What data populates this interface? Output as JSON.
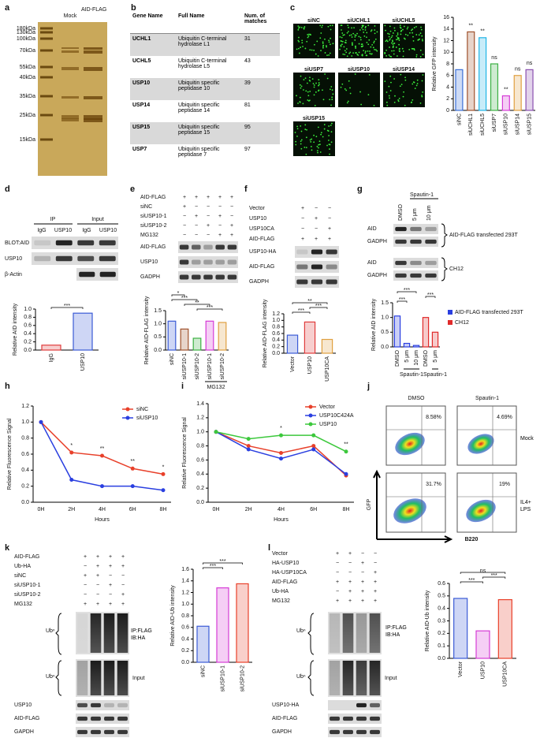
{
  "panels": {
    "a": {
      "letter": "a",
      "lanes": [
        "Mock",
        "AID-FLAG"
      ],
      "markers": [
        "180kDa",
        "130kDa",
        "100kDa",
        "70kDa",
        "55kDa",
        "40kDa",
        "35kDa",
        "25kDa",
        "15kDa"
      ]
    },
    "b": {
      "letter": "b",
      "table": {
        "header": [
          "Gene Name",
          "Full Name",
          "Num. of matches"
        ],
        "rows": [
          [
            "UCHL1",
            "Ubiquitin C-terminal hydrolase L1",
            31
          ],
          [
            "UCHL5",
            "Ubiquitin C-terminal hydrolase L5",
            43
          ],
          [
            "USP10",
            "Ubiquitin specific peptidase 10",
            39
          ],
          [
            "USP14",
            "Ubiquitin specific peptidase 14",
            81
          ],
          [
            "USP15",
            "Ubiquitin specific peptidase 15",
            95
          ],
          [
            "USP7",
            "Ubiquitin specific peptidase 7",
            97
          ]
        ]
      }
    },
    "c": {
      "letter": "c",
      "images": [
        "siNC",
        "siUCHL1",
        "siUCHL5",
        "siUSP7",
        "siUSP10",
        "siUSP14",
        "siUSP15"
      ]
    },
    "d": {
      "letter": "d",
      "groups": [
        "IP",
        "Input"
      ],
      "lanes": [
        "IgG",
        "USP10",
        "IgG",
        "USP10"
      ],
      "rows": [
        "BLOT:AID",
        "USP10",
        "β-Actin"
      ]
    },
    "e": {
      "letter": "e",
      "conditions": [
        {
          "label": "AID-FLAG",
          "signs": [
            "+",
            "+",
            "+",
            "+",
            "+"
          ]
        },
        {
          "label": "siNC",
          "signs": [
            "+",
            "−",
            "−",
            "−",
            "−"
          ]
        },
        {
          "label": "siUSP10-1",
          "signs": [
            "−",
            "+",
            "−",
            "+",
            "−"
          ]
        },
        {
          "label": "siUSP10-2",
          "signs": [
            "−",
            "−",
            "+",
            "−",
            "+"
          ]
        },
        {
          "label": "MG132",
          "signs": [
            "−",
            "−",
            "−",
            "+",
            "+"
          ]
        }
      ],
      "rows": [
        "AID-FLAG",
        "USP10",
        "GADPH"
      ]
    },
    "f": {
      "letter": "f",
      "conditions": [
        {
          "label": "Vector",
          "signs": [
            "+",
            "−",
            "−"
          ]
        },
        {
          "label": "USP10",
          "signs": [
            "−",
            "+",
            "−"
          ]
        },
        {
          "label": "USP10CA",
          "signs": [
            "−",
            "−",
            "+"
          ]
        },
        {
          "label": "AID-FLAG",
          "signs": [
            "+",
            "+",
            "+"
          ]
        }
      ],
      "rows": [
        "USP10-HA",
        "AID-FLAG",
        "GADPH"
      ]
    },
    "g": {
      "letter": "g",
      "treatment": "Spautin-1",
      "lanes": [
        "DMSO",
        "5 μm",
        "10 μm"
      ],
      "rows": [
        "AID",
        "GADPH",
        "AID",
        "GADPH"
      ],
      "cells": [
        "AID-FLAG transfected 293T",
        "CH12"
      ]
    },
    "h": {
      "letter": "h"
    },
    "i": {
      "letter": "i"
    },
    "j": {
      "letter": "j",
      "columns": [
        "DMSO",
        "Spautin-1"
      ],
      "row_labels": [
        "Mock",
        "IL4+ LPS"
      ],
      "percentages": [
        "8.58%",
        "4.69%",
        "31.7%",
        "19%"
      ],
      "y_axis": "GFP",
      "x_axis": "B220"
    },
    "k": {
      "letter": "k",
      "conditions": [
        {
          "label": "AID-FLAG",
          "signs": [
            "+",
            "+",
            "+",
            "+"
          ]
        },
        {
          "label": "Ub-HA",
          "signs": [
            "−",
            "+",
            "+",
            "+"
          ]
        },
        {
          "label": "siNC",
          "signs": [
            "+",
            "+",
            "−",
            "−"
          ]
        },
        {
          "label": "siUSP10-1",
          "signs": [
            "−",
            "−",
            "+",
            "−"
          ]
        },
        {
          "label": "siUSP10-2",
          "signs": [
            "−",
            "−",
            "−",
            "+"
          ]
        },
        {
          "label": "MG132",
          "signs": [
            "+",
            "+",
            "+",
            "+"
          ]
        }
      ],
      "ub": [
        "Ubⁿ",
        "Ubⁿ"
      ],
      "ip_label": "IP:FLAG IB:HA",
      "input_label": "Input",
      "rows": [
        "USP10",
        "AID-FLAG",
        "GAPDH"
      ]
    },
    "l": {
      "letter": "l",
      "conditions": [
        {
          "label": "Vector",
          "signs": [
            "+",
            "+",
            "−",
            "−"
          ]
        },
        {
          "label": "HA-USP10",
          "signs": [
            "−",
            "−",
            "+",
            "−"
          ]
        },
        {
          "label": "HA-USP10CA",
          "signs": [
            "−",
            "−",
            "−",
            "+"
          ]
        },
        {
          "label": "AID-FLAG",
          "signs": [
            "+",
            "+",
            "+",
            "+"
          ]
        },
        {
          "label": "Ub-HA",
          "signs": [
            "−",
            "+",
            "+",
            "+"
          ]
        },
        {
          "label": "MG132",
          "signs": [
            "+",
            "+",
            "+",
            "+"
          ]
        }
      ],
      "ub": [
        "Ubⁿ",
        "Ubⁿ"
      ],
      "ip_label": "IP:FLAG IB:HA",
      "input_label": "Input",
      "rows": [
        "USP10-HA",
        "AID-FLAG",
        "GAPDH"
      ]
    }
  },
  "chart_data": [
    {
      "type": "bar",
      "ylabel": "Relative GFP intensity",
      "categories": [
        "siNC",
        "siUCHL1",
        "siUCHL5",
        "siUSP7",
        "siUSP10",
        "siUSP14",
        "siUSP15"
      ],
      "values": [
        7,
        13.5,
        12.5,
        8,
        2.5,
        6,
        7
      ],
      "colors": [
        "#3b6fd6",
        "#a0522d",
        "#1fb5e6",
        "#3cb043",
        "#d63cd6",
        "#e0a040",
        "#8a4fb0"
      ],
      "ylim": [
        0,
        16
      ],
      "yticks": [
        0,
        2,
        4,
        6,
        8,
        10,
        12,
        14,
        16
      ],
      "annotations": [
        null,
        "**",
        "**",
        "ns",
        "**",
        "ns",
        "ns"
      ]
    },
    {
      "type": "bar",
      "ylabel": "Relative AID intensity",
      "categories": [
        "IgG",
        "USP10"
      ],
      "values": [
        0.12,
        0.9
      ],
      "colors": [
        "#e03c3c",
        "#3b5bd6"
      ],
      "ylim": [
        0,
        1
      ],
      "yticks": [
        {
          "value": 0,
          "label": "0.0"
        },
        0.2,
        0.4,
        0.6,
        0.8,
        {
          "value": 1,
          "label": "1.0"
        }
      ],
      "brackets": [
        {
          "from": 0,
          "to": 1,
          "label": "***"
        }
      ]
    },
    {
      "type": "bar",
      "ylabel": "Relative AID-FLAG intensity",
      "categories": [
        "siNC",
        "siUSP10-1",
        "siUSP10-2",
        "siUSP10-1",
        "siUSP10-2"
      ],
      "values": [
        1.1,
        0.8,
        0.45,
        1.1,
        1.05
      ],
      "colors": [
        "#3b5bd6",
        "#a0522d",
        "#3cb043",
        "#d63cd6",
        "#e0a040"
      ],
      "ylim": [
        0,
        1.5
      ],
      "yticks": [
        {
          "value": 0,
          "label": "0.0"
        },
        0.5,
        {
          "value": 1,
          "label": "1.0"
        },
        1.5
      ],
      "brackets": [
        {
          "from": 2,
          "to": 4,
          "label": "***"
        },
        {
          "from": 1,
          "to": 3,
          "label": "**"
        },
        {
          "from": 0,
          "to": 2,
          "label": "***"
        },
        {
          "from": 0,
          "to": 1,
          "label": "*"
        }
      ],
      "groups": [
        {
          "label": "MG132",
          "from": 3,
          "to": 4
        }
      ]
    },
    {
      "type": "bar",
      "ylabel": "Relative AID-FLAG intensity",
      "categories": [
        "Vector",
        "USP10",
        "USP10CA"
      ],
      "values": [
        0.55,
        0.95,
        0.42
      ],
      "colors": [
        "#3b5bd6",
        "#e03c3c",
        "#e0a040"
      ],
      "ylim": [
        0,
        1.2
      ],
      "yticks": [
        {
          "value": 0,
          "label": "0.0"
        },
        0.2,
        0.4,
        0.6,
        0.8,
        {
          "value": 1,
          "label": "1.0"
        },
        1.2
      ],
      "brackets": [
        {
          "from": 0,
          "to": 1,
          "label": "***"
        },
        {
          "from": 1,
          "to": 2,
          "label": "***"
        },
        {
          "from": 0,
          "to": 2,
          "label": "**"
        }
      ]
    },
    {
      "type": "bar",
      "ylabel": "Relative AID intensity",
      "categories": [
        "DMSO",
        "5 μm",
        "10 μm",
        "DMSO",
        "5 μm"
      ],
      "values": [
        1.05,
        0.12,
        0.05,
        1,
        0.5
      ],
      "colors": [
        "#2a3fe0",
        "#2a3fe0",
        "#2a3fe0",
        "#e02a2a",
        "#e02a2a"
      ],
      "ylim": [
        0,
        1.5
      ],
      "yticks": [
        {
          "value": 0,
          "label": "0.0"
        },
        0.5,
        {
          "value": 1,
          "label": "1.0"
        },
        1.5
      ],
      "brackets": [
        {
          "from": 0,
          "to": 1,
          "label": "***"
        },
        {
          "from": 3,
          "to": 4,
          "label": "***"
        },
        {
          "from": 0,
          "to": 2,
          "label": "***"
        }
      ],
      "groups": [
        {
          "label": "Spautin-1",
          "from": 1,
          "to": 2
        },
        {
          "label": "Spautin-1",
          "from": 4,
          "to": 4
        }
      ],
      "legend": [
        {
          "name": "AID-FLAG transfected 293T",
          "color": "#2a3fe0"
        },
        {
          "name": "CH12",
          "color": "#e02a2a"
        }
      ]
    },
    {
      "type": "line",
      "ylabel": "Relative Fluorescence Signal",
      "xlabel": "Hours",
      "categories": [
        "0H",
        "2H",
        "4H",
        "6H",
        "8H"
      ],
      "series": [
        {
          "name": "siNC",
          "color": "#e8402a",
          "values": [
            1,
            0.62,
            0.58,
            0.42,
            0.35
          ]
        },
        {
          "name": "siUSP10",
          "color": "#2a3fe0",
          "values": [
            1,
            0.28,
            0.2,
            0.2,
            0.15
          ]
        }
      ],
      "ylim": [
        0,
        1.2
      ],
      "yticks": [
        {
          "value": 0,
          "label": "0.0"
        },
        0.2,
        0.4,
        0.6,
        0.8,
        {
          "value": 1,
          "label": "1.0"
        },
        1.2
      ],
      "annotations": [
        null,
        "*",
        "**",
        "**",
        "*"
      ],
      "legend": "upper right"
    },
    {
      "type": "line",
      "ylabel": "Relative Fluorescence Signal",
      "xlabel": "Hours",
      "categories": [
        "0H",
        "2H",
        "4H",
        "6H",
        "8H"
      ],
      "series": [
        {
          "name": "Vector",
          "color": "#e8402a",
          "values": [
            1,
            0.8,
            0.7,
            0.8,
            0.38
          ]
        },
        {
          "name": "USP10C424A",
          "color": "#2a3fe0",
          "values": [
            1,
            0.75,
            0.62,
            0.75,
            0.4
          ]
        },
        {
          "name": "USP10",
          "color": "#3cc83c",
          "values": [
            1,
            0.9,
            0.95,
            0.95,
            0.72
          ]
        }
      ],
      "ylim": [
        0,
        1.4
      ],
      "yticks": [
        {
          "value": 0,
          "label": "0.0"
        },
        0.2,
        0.4,
        0.6,
        0.8,
        {
          "value": 1,
          "label": "1.0"
        },
        1.2,
        1.4
      ],
      "annotations": [
        null,
        null,
        "*",
        null,
        "**"
      ],
      "legend": "upper right"
    },
    {
      "type": "bar",
      "ylabel": "Relative AID-Ub intensity",
      "categories": [
        "siNC",
        "siUSP10-1",
        "siUSP10-2"
      ],
      "values": [
        0.62,
        1.28,
        1.35
      ],
      "colors": [
        "#3b5bd6",
        "#d63cd6",
        "#e8402a"
      ],
      "ylim": [
        0,
        1.6
      ],
      "yticks": [
        {
          "value": 0,
          "label": "0.0"
        },
        0.2,
        0.4,
        0.6,
        0.8,
        {
          "value": 1,
          "label": "1.0"
        },
        1.2,
        1.4,
        1.6
      ],
      "brackets": [
        {
          "from": 0,
          "to": 1,
          "label": "***"
        },
        {
          "from": 0,
          "to": 2,
          "label": "***"
        }
      ]
    },
    {
      "type": "bar",
      "ylabel": "Relative AID-Ub intensity",
      "categories": [
        "Vector",
        "USP10",
        "USP10CA"
      ],
      "values": [
        0.48,
        0.22,
        0.47
      ],
      "colors": [
        "#3b5bd6",
        "#d63cd6",
        "#e8402a"
      ],
      "ylim": [
        0,
        0.6
      ],
      "yticks": [
        {
          "value": 0,
          "label": "0.0"
        },
        0.1,
        0.2,
        0.3,
        0.4,
        0.5,
        0.6
      ],
      "brackets": [
        {
          "from": 0,
          "to": 1,
          "label": "***"
        },
        {
          "from": 1,
          "to": 2,
          "label": "***"
        },
        {
          "from": 0,
          "to": 2,
          "label": "ns"
        }
      ]
    }
  ]
}
